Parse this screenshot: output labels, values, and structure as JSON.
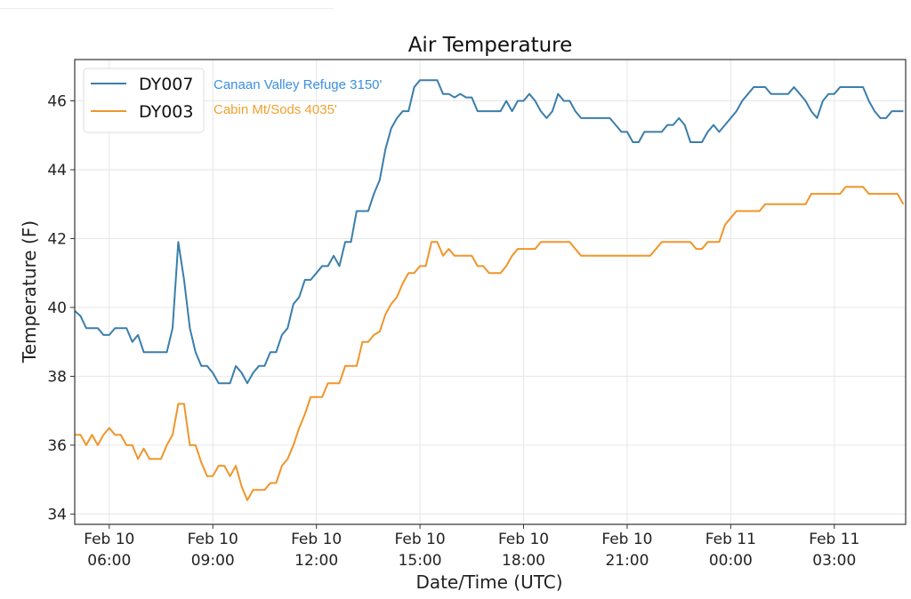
{
  "chart_data": {
    "type": "line",
    "title": "Air Temperature",
    "xlabel": "Date/Time (UTC)",
    "ylabel": "Temperature (F)",
    "x_start": "Feb 10 05:00",
    "x_interval_minutes": 10,
    "xlim_minutes": [
      0,
      1444
    ],
    "ylim": [
      33.7,
      47.2
    ],
    "grid": true,
    "legend_placement": "top-left",
    "yticks": [
      34,
      36,
      38,
      40,
      42,
      44,
      46
    ],
    "xticks": [
      {
        "minutes": 60,
        "line1": "Feb 10",
        "line2": "06:00"
      },
      {
        "minutes": 240,
        "line1": "Feb 10",
        "line2": "09:00"
      },
      {
        "minutes": 420,
        "line1": "Feb 10",
        "line2": "12:00"
      },
      {
        "minutes": 600,
        "line1": "Feb 10",
        "line2": "15:00"
      },
      {
        "minutes": 780,
        "line1": "Feb 10",
        "line2": "18:00"
      },
      {
        "minutes": 960,
        "line1": "Feb 10",
        "line2": "21:00"
      },
      {
        "minutes": 1140,
        "line1": "Feb 11",
        "line2": "00:00"
      },
      {
        "minutes": 1320,
        "line1": "Feb 11",
        "line2": "03:00"
      }
    ],
    "series": [
      {
        "name": "DY007",
        "annotation": "Canaan Valley Refuge 3150'",
        "color": "#3a7eab",
        "annotation_color": "#3b8fe0",
        "values": [
          39.9,
          39.75,
          39.4,
          39.4,
          39.4,
          39.2,
          39.2,
          39.4,
          39.4,
          39.4,
          39.0,
          39.2,
          38.7,
          38.7,
          38.7,
          38.7,
          38.7,
          39.4,
          41.9,
          40.8,
          39.4,
          38.7,
          38.3,
          38.3,
          38.1,
          37.8,
          37.8,
          37.8,
          38.3,
          38.1,
          37.8,
          38.1,
          38.3,
          38.3,
          38.7,
          38.7,
          39.2,
          39.4,
          40.1,
          40.3,
          40.8,
          40.8,
          41.0,
          41.2,
          41.2,
          41.5,
          41.2,
          41.9,
          41.9,
          42.8,
          42.8,
          42.8,
          43.3,
          43.7,
          44.6,
          45.2,
          45.5,
          45.7,
          45.7,
          46.4,
          46.6,
          46.6,
          46.6,
          46.6,
          46.2,
          46.2,
          46.1,
          46.2,
          46.1,
          46.1,
          45.7,
          45.7,
          45.7,
          45.7,
          45.7,
          46.0,
          45.7,
          46.0,
          46.0,
          46.2,
          46.0,
          45.7,
          45.5,
          45.7,
          46.2,
          46.0,
          46.0,
          45.7,
          45.5,
          45.5,
          45.5,
          45.5,
          45.5,
          45.5,
          45.3,
          45.1,
          45.1,
          44.8,
          44.8,
          45.1,
          45.1,
          45.1,
          45.1,
          45.3,
          45.3,
          45.5,
          45.3,
          44.8,
          44.8,
          44.8,
          45.1,
          45.3,
          45.1,
          45.3,
          45.5,
          45.7,
          46.0,
          46.2,
          46.4,
          46.4,
          46.4,
          46.2,
          46.2,
          46.2,
          46.2,
          46.4,
          46.2,
          46.0,
          45.7,
          45.5,
          46.0,
          46.2,
          46.2,
          46.4,
          46.4,
          46.4,
          46.4,
          46.4,
          46.0,
          45.7,
          45.5,
          45.5,
          45.7,
          45.7,
          45.7
        ]
      },
      {
        "name": "DY003",
        "annotation": "Cabin Mt/Sods 4035'",
        "color": "#f0952a",
        "annotation_color": "#f0a030",
        "values": [
          36.3,
          36.3,
          36.0,
          36.3,
          36.0,
          36.3,
          36.5,
          36.3,
          36.3,
          36.0,
          36.0,
          35.6,
          35.9,
          35.6,
          35.6,
          35.6,
          36.0,
          36.3,
          37.2,
          37.2,
          36.0,
          36.0,
          35.5,
          35.1,
          35.1,
          35.4,
          35.4,
          35.1,
          35.4,
          34.8,
          34.4,
          34.7,
          34.7,
          34.7,
          34.9,
          34.9,
          35.4,
          35.6,
          36.0,
          36.5,
          36.9,
          37.4,
          37.4,
          37.4,
          37.8,
          37.8,
          37.8,
          38.3,
          38.3,
          38.3,
          39.0,
          39.0,
          39.2,
          39.3,
          39.8,
          40.1,
          40.3,
          40.7,
          41.0,
          41.0,
          41.2,
          41.2,
          41.9,
          41.9,
          41.5,
          41.7,
          41.5,
          41.5,
          41.5,
          41.5,
          41.2,
          41.2,
          41.0,
          41.0,
          41.0,
          41.2,
          41.5,
          41.7,
          41.7,
          41.7,
          41.7,
          41.9,
          41.9,
          41.9,
          41.9,
          41.9,
          41.9,
          41.7,
          41.5,
          41.5,
          41.5,
          41.5,
          41.5,
          41.5,
          41.5,
          41.5,
          41.5,
          41.5,
          41.5,
          41.5,
          41.5,
          41.7,
          41.9,
          41.9,
          41.9,
          41.9,
          41.9,
          41.9,
          41.7,
          41.7,
          41.9,
          41.9,
          41.9,
          42.4,
          42.6,
          42.8,
          42.8,
          42.8,
          42.8,
          42.8,
          43.0,
          43.0,
          43.0,
          43.0,
          43.0,
          43.0,
          43.0,
          43.0,
          43.3,
          43.3,
          43.3,
          43.3,
          43.3,
          43.3,
          43.5,
          43.5,
          43.5,
          43.5,
          43.3,
          43.3,
          43.3,
          43.3,
          43.3,
          43.3,
          43.0
        ]
      }
    ]
  }
}
